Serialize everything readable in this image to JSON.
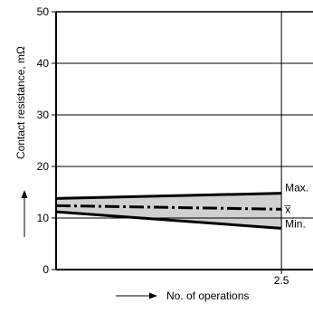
{
  "chart_data": {
    "type": "line",
    "title": "",
    "xlabel": "No. of operations",
    "ylabel": "Contact resistance, mΩ",
    "xlim": [
      0,
      2.85
    ],
    "ylim": [
      0,
      50
    ],
    "x_ticks": [
      {
        "value": 2.5,
        "label": "2.5"
      }
    ],
    "y_ticks": [
      {
        "value": 0,
        "label": "0"
      },
      {
        "value": 10,
        "label": "10"
      },
      {
        "value": 20,
        "label": "20"
      },
      {
        "value": 30,
        "label": "30"
      },
      {
        "value": 40,
        "label": "40"
      },
      {
        "value": 50,
        "label": "50"
      }
    ],
    "grid": true,
    "series": [
      {
        "name": "Max.",
        "style": "solid",
        "x": [
          0,
          2.5
        ],
        "y": [
          13.8,
          14.8
        ]
      },
      {
        "name": "x̅",
        "style": "dash-dot",
        "x": [
          0,
          2.5
        ],
        "y": [
          12.4,
          11.7
        ]
      },
      {
        "name": "Min.",
        "style": "solid",
        "x": [
          0,
          2.5
        ],
        "y": [
          11.2,
          8.0
        ]
      }
    ],
    "band": {
      "upper": "Max.",
      "lower": "Min.",
      "fill": "#d0d0d0"
    },
    "colors": {
      "line": "#000000",
      "band": "#d0d0d0",
      "grid": "#000000"
    }
  }
}
